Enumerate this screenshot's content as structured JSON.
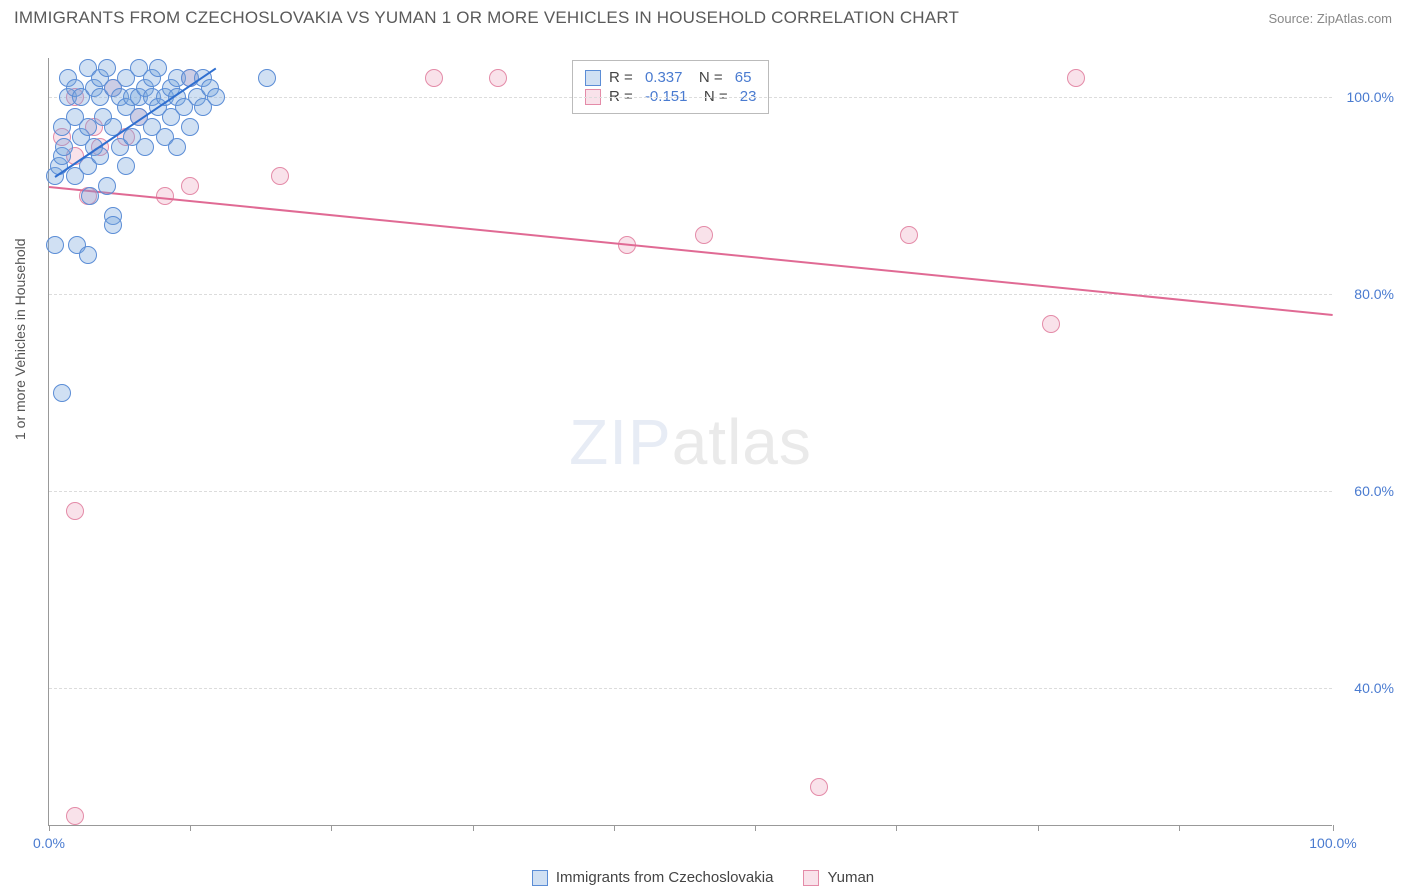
{
  "title": "IMMIGRANTS FROM CZECHOSLOVAKIA VS YUMAN 1 OR MORE VEHICLES IN HOUSEHOLD CORRELATION CHART",
  "source_label": "Source: ZipAtlas.com",
  "y_axis_label": "1 or more Vehicles in Household",
  "watermark_bold": "ZIP",
  "watermark_thin": "atlas",
  "colors": {
    "blue_stroke": "#5b8dd6",
    "blue_fill": "rgba(120,165,220,0.35)",
    "pink_stroke": "#e48ba8",
    "pink_fill": "rgba(235,160,185,0.30)",
    "blue_line": "#2f6fd0",
    "pink_line": "#e06a94",
    "tick_text": "#4a7bd0"
  },
  "chart": {
    "type": "scatter",
    "xlim": [
      0,
      100
    ],
    "ylim": [
      26,
      104
    ],
    "x_ticks": [
      0,
      11,
      22,
      33,
      44,
      55,
      66,
      77,
      88,
      100
    ],
    "x_tick_labels": {
      "0": "0.0%",
      "100": "100.0%"
    },
    "y_gridlines": [
      40,
      60,
      80,
      100
    ],
    "y_tick_labels": {
      "40": "40.0%",
      "60": "60.0%",
      "80": "80.0%",
      "100": "100.0%"
    },
    "point_radius": 9,
    "series_blue": {
      "name": "Immigrants from Czechoslovakia",
      "r": "0.337",
      "n": "65",
      "points": [
        [
          0.5,
          92
        ],
        [
          0.8,
          93
        ],
        [
          1,
          94
        ],
        [
          1,
          97
        ],
        [
          1.2,
          95
        ],
        [
          1.5,
          100
        ],
        [
          1.5,
          102
        ],
        [
          2,
          101
        ],
        [
          2,
          98
        ],
        [
          2,
          92
        ],
        [
          2.2,
          85
        ],
        [
          2.5,
          96
        ],
        [
          2.5,
          100
        ],
        [
          3,
          103
        ],
        [
          3,
          97
        ],
        [
          3,
          93
        ],
        [
          3.2,
          90
        ],
        [
          3.5,
          101
        ],
        [
          3.5,
          95
        ],
        [
          4,
          102
        ],
        [
          4,
          100
        ],
        [
          4,
          94
        ],
        [
          4.2,
          98
        ],
        [
          4.5,
          103
        ],
        [
          4.5,
          91
        ],
        [
          5,
          101
        ],
        [
          5,
          97
        ],
        [
          5,
          88
        ],
        [
          5.5,
          100
        ],
        [
          5.5,
          95
        ],
        [
          6,
          102
        ],
        [
          6,
          99
        ],
        [
          6,
          93
        ],
        [
          6.5,
          100
        ],
        [
          6.5,
          96
        ],
        [
          7,
          103
        ],
        [
          7,
          98
        ],
        [
          7,
          100
        ],
        [
          7.5,
          101
        ],
        [
          7.5,
          95
        ],
        [
          8,
          100
        ],
        [
          8,
          102
        ],
        [
          8,
          97
        ],
        [
          8.5,
          99
        ],
        [
          8.5,
          103
        ],
        [
          9,
          100
        ],
        [
          9,
          96
        ],
        [
          9.5,
          101
        ],
        [
          9.5,
          98
        ],
        [
          10,
          102
        ],
        [
          10,
          100
        ],
        [
          10,
          95
        ],
        [
          10.5,
          99
        ],
        [
          11,
          102
        ],
        [
          11,
          97
        ],
        [
          11.5,
          100
        ],
        [
          12,
          102
        ],
        [
          12,
          99
        ],
        [
          12.5,
          101
        ],
        [
          13,
          100
        ],
        [
          0.5,
          85
        ],
        [
          1,
          70
        ],
        [
          5,
          87
        ],
        [
          3,
          84
        ],
        [
          17,
          102
        ]
      ],
      "trend": {
        "x1": 0.5,
        "y1": 92,
        "x2": 13,
        "y2": 103
      }
    },
    "series_pink": {
      "name": "Yuman",
      "r": "-0.151",
      "n": "23",
      "points": [
        [
          1,
          96
        ],
        [
          2,
          100
        ],
        [
          2,
          94
        ],
        [
          3,
          90
        ],
        [
          3.5,
          97
        ],
        [
          4,
          95
        ],
        [
          5,
          101
        ],
        [
          6,
          96
        ],
        [
          7,
          98
        ],
        [
          9,
          90
        ],
        [
          11,
          102
        ],
        [
          11,
          91
        ],
        [
          18,
          92
        ],
        [
          30,
          102
        ],
        [
          35,
          102
        ],
        [
          45,
          85
        ],
        [
          51,
          86
        ],
        [
          60,
          30
        ],
        [
          67,
          86
        ],
        [
          78,
          77
        ],
        [
          80,
          102
        ],
        [
          2,
          58
        ],
        [
          2,
          27
        ]
      ],
      "trend": {
        "x1": 0,
        "y1": 91,
        "x2": 100,
        "y2": 78
      }
    }
  },
  "bottom_legend": [
    {
      "label": "Immigrants from Czechoslovakia",
      "color": "blue"
    },
    {
      "label": "Yuman",
      "color": "pink"
    }
  ]
}
